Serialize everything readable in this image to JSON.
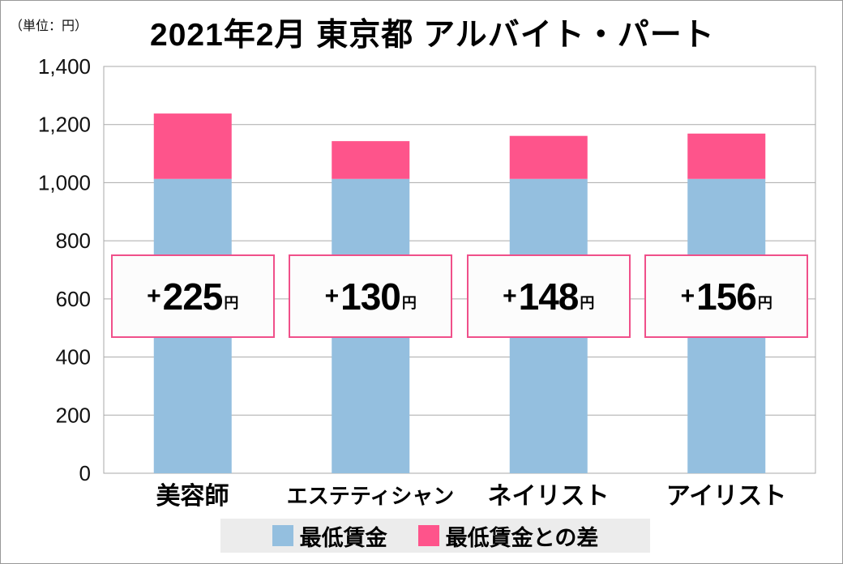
{
  "chart_data": {
    "type": "bar",
    "stacked": true,
    "title": "2021年2月 東京都 アルバイト・パート",
    "unit_label": "（単位：円）",
    "categories": [
      "美容師",
      "エステティシャン",
      "ネイリスト",
      "アイリスト"
    ],
    "series": [
      {
        "name": "最低賃金",
        "values": [
          1013,
          1013,
          1013,
          1013
        ],
        "color": "#94bfdf"
      },
      {
        "name": "最低賃金との差",
        "values": [
          225,
          130,
          148,
          156
        ],
        "color": "#fe548b"
      }
    ],
    "data_labels": [
      {
        "plus": "+",
        "value": "225",
        "unit": "円"
      },
      {
        "plus": "+",
        "value": "130",
        "unit": "円"
      },
      {
        "plus": "+",
        "value": "148",
        "unit": "円"
      },
      {
        "plus": "+",
        "value": "156",
        "unit": "円"
      }
    ],
    "ylim": [
      0,
      1400
    ],
    "yticks": [
      0,
      200,
      400,
      600,
      800,
      1000,
      1200,
      1400
    ],
    "ytick_labels": [
      "0",
      "200",
      "400",
      "600",
      "800",
      "1,000",
      "1,200",
      "1,400"
    ],
    "grid": true,
    "legend_position": "bottom"
  }
}
